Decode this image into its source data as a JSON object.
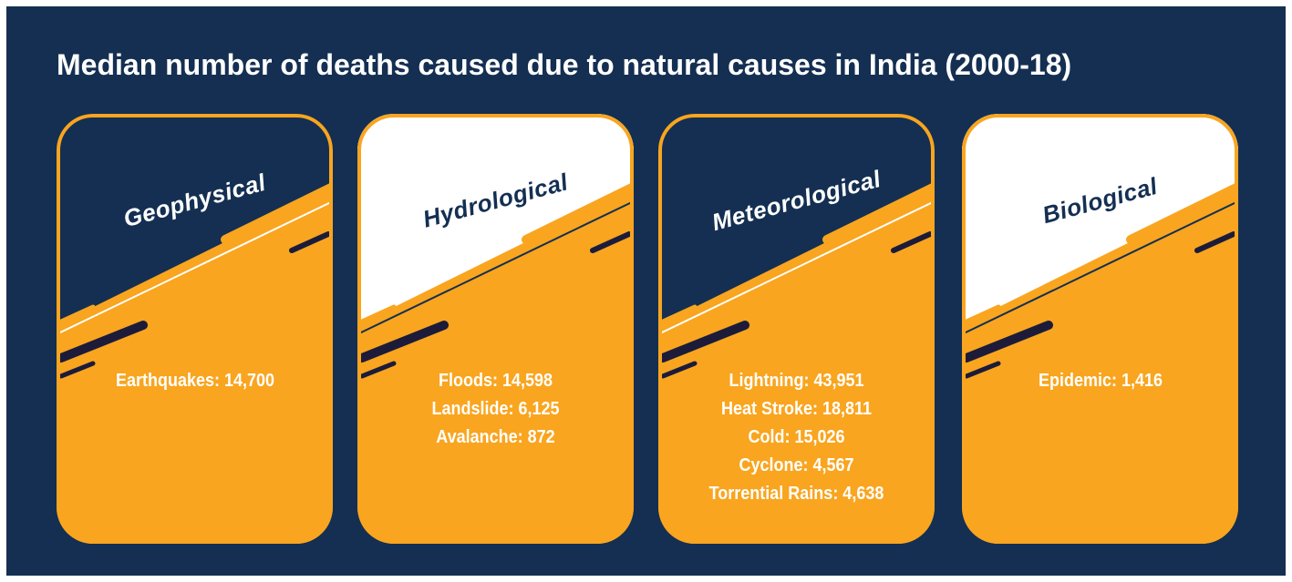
{
  "title": "Median number of deaths caused due to natural causes in India (2000-18)",
  "cards": [
    {
      "heading": "Geophysical",
      "theme": "dark",
      "items": [
        "Earthquakes: 14,700"
      ]
    },
    {
      "heading": "Hydrological",
      "theme": "light",
      "items": [
        "Floods: 14,598",
        "Landslide: 6,125",
        "Avalanche: 872"
      ]
    },
    {
      "heading": "Meteorological",
      "theme": "dark",
      "items": [
        "Lightning: 43,951",
        "Heat Stroke: 18,811",
        "Cold: 15,026",
        "Cyclone: 4,567",
        "Torrential Rains: 4,638"
      ]
    },
    {
      "heading": "Biological",
      "theme": "light",
      "items": [
        "Epidemic: 1,416"
      ]
    }
  ]
}
